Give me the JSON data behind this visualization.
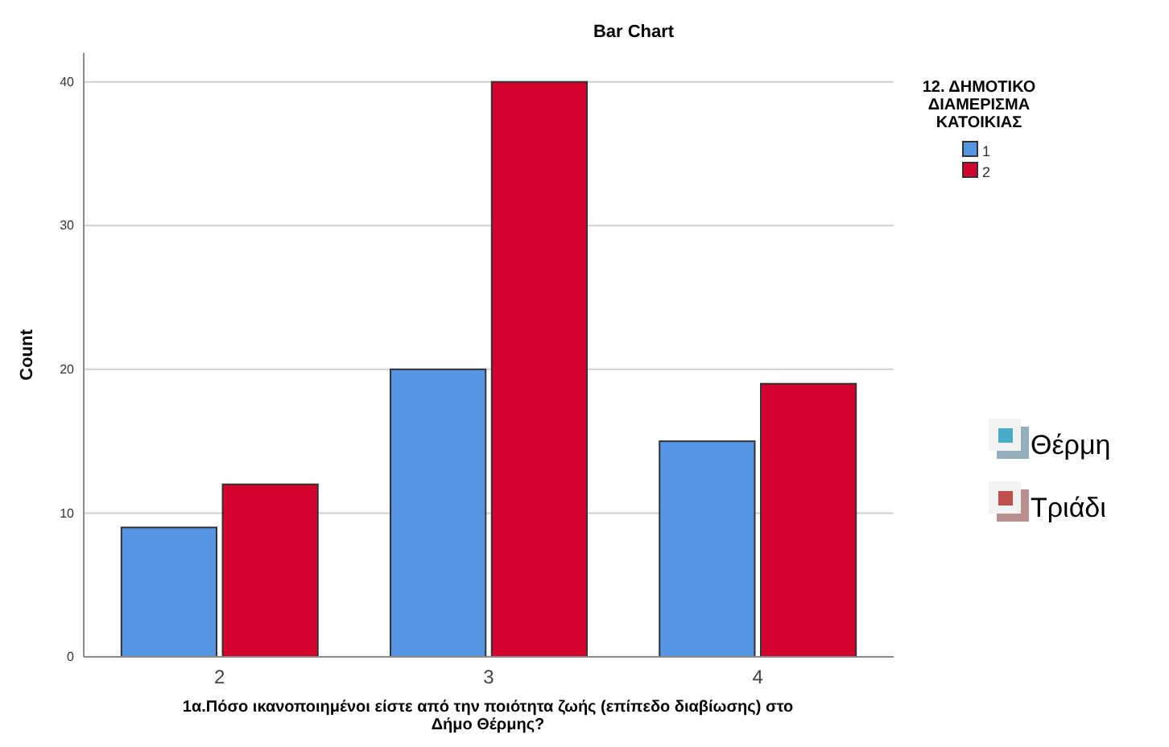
{
  "chart_data": {
    "type": "bar",
    "title": "Bar Chart",
    "xlabel": "1α.Πόσο ικανοποιημένοι είστε από την ποιότητα ζωής (επίπεδο διαβίωσης) στο Δήμο Θέρμης?",
    "ylabel": "Count",
    "legend_title": "12. ΔΗΜΟΤΙΚΟ ΔΙΑΜΕΡΙΣΜΑ ΚΑΤΟΙΚΙΑΣ",
    "categories": [
      "2",
      "3",
      "4"
    ],
    "series": [
      {
        "name": "1",
        "color": "#5694e4",
        "values": [
          9,
          20,
          15
        ]
      },
      {
        "name": "2",
        "color": "#d3002e",
        "values": [
          12,
          40,
          19
        ]
      }
    ],
    "ylim": [
      0,
      42
    ],
    "yticks": [
      0,
      10,
      20,
      30,
      40
    ],
    "grid": "y",
    "legend": "top right",
    "annotations": [
      "Θέρμη",
      "Τριάδι"
    ]
  }
}
